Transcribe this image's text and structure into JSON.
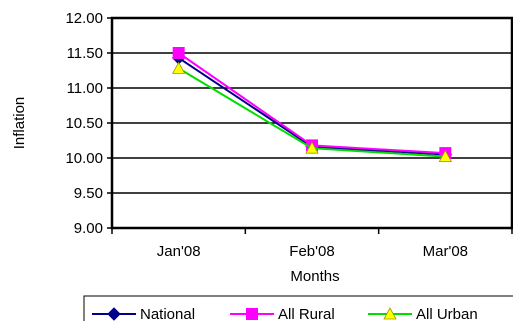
{
  "chart_data": {
    "type": "line",
    "categories": [
      "Jan'08",
      "Feb'08",
      "Mar'08"
    ],
    "series": [
      {
        "name": "National",
        "values": [
          11.43,
          10.16,
          10.05
        ],
        "color": "#00008B",
        "marker": "diamond"
      },
      {
        "name": "All Rural",
        "values": [
          11.5,
          10.18,
          10.07
        ],
        "color": "#FF00FF",
        "marker": "square"
      },
      {
        "name": "All Urban",
        "values": [
          11.28,
          10.14,
          10.02
        ],
        "color": "#00DD00",
        "marker": "triangle",
        "marker_color": "#FFFF00"
      }
    ],
    "title": "",
    "xlabel": "Months",
    "ylabel": "Inflation",
    "ylim": [
      9.0,
      12.0
    ],
    "yticks": [
      "9.00",
      "9.50",
      "10.00",
      "10.50",
      "11.00",
      "11.50",
      "12.00"
    ],
    "grid": "horizontal",
    "legend": "bottom"
  }
}
